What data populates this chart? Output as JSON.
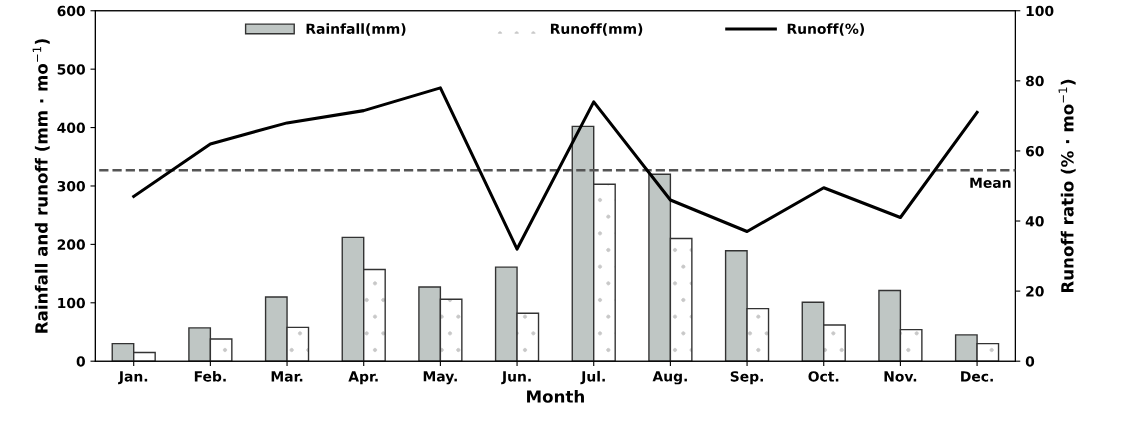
{
  "chart_data": {
    "type": "bar",
    "xlabel": "Month",
    "ylabel": "Rainfall and runoff (mm · mo$^{−1}$)",
    "y2label": "Runoff ratio (% · mo$^{−1}$)",
    "categories": [
      "Jan.",
      "Feb.",
      "Mar.",
      "Apr.",
      "May.",
      "Jun.",
      "Jul.",
      "Aug.",
      "Sep.",
      "Oct.",
      "Nov.",
      "Dec."
    ],
    "series": [
      {
        "name": "Rainfall(mm)",
        "color": "#bfc6c4",
        "values": [
          30,
          57,
          110,
          212,
          127,
          161,
          402,
          320,
          189,
          101,
          121,
          45
        ]
      },
      {
        "name": "Runoff(mm)",
        "color": "#ffffff",
        "values": [
          15,
          38,
          58,
          157,
          106,
          82,
          303,
          210,
          90,
          62,
          54,
          30
        ]
      },
      {
        "name": "Runoff(%)",
        "type": "line",
        "axis": "y2",
        "color": "#000000",
        "values": [
          47,
          62,
          68,
          71.5,
          78,
          32,
          74,
          46,
          37,
          49.5,
          41,
          71
        ]
      }
    ],
    "ylim": [
      0,
      600
    ],
    "yticks": [
      0,
      100,
      200,
      300,
      400,
      500,
      600
    ],
    "y2lim": [
      0,
      100
    ],
    "y2ticks": [
      0,
      20,
      40,
      60,
      80,
      100
    ],
    "ref_lines": [
      {
        "axis": "y2",
        "value": 54.5,
        "label": "Mean",
        "color": "#555555",
        "line_style": "dashed"
      }
    ],
    "legend": "top",
    "grid": false,
    "marker": "none",
    "line_style": "solid"
  }
}
